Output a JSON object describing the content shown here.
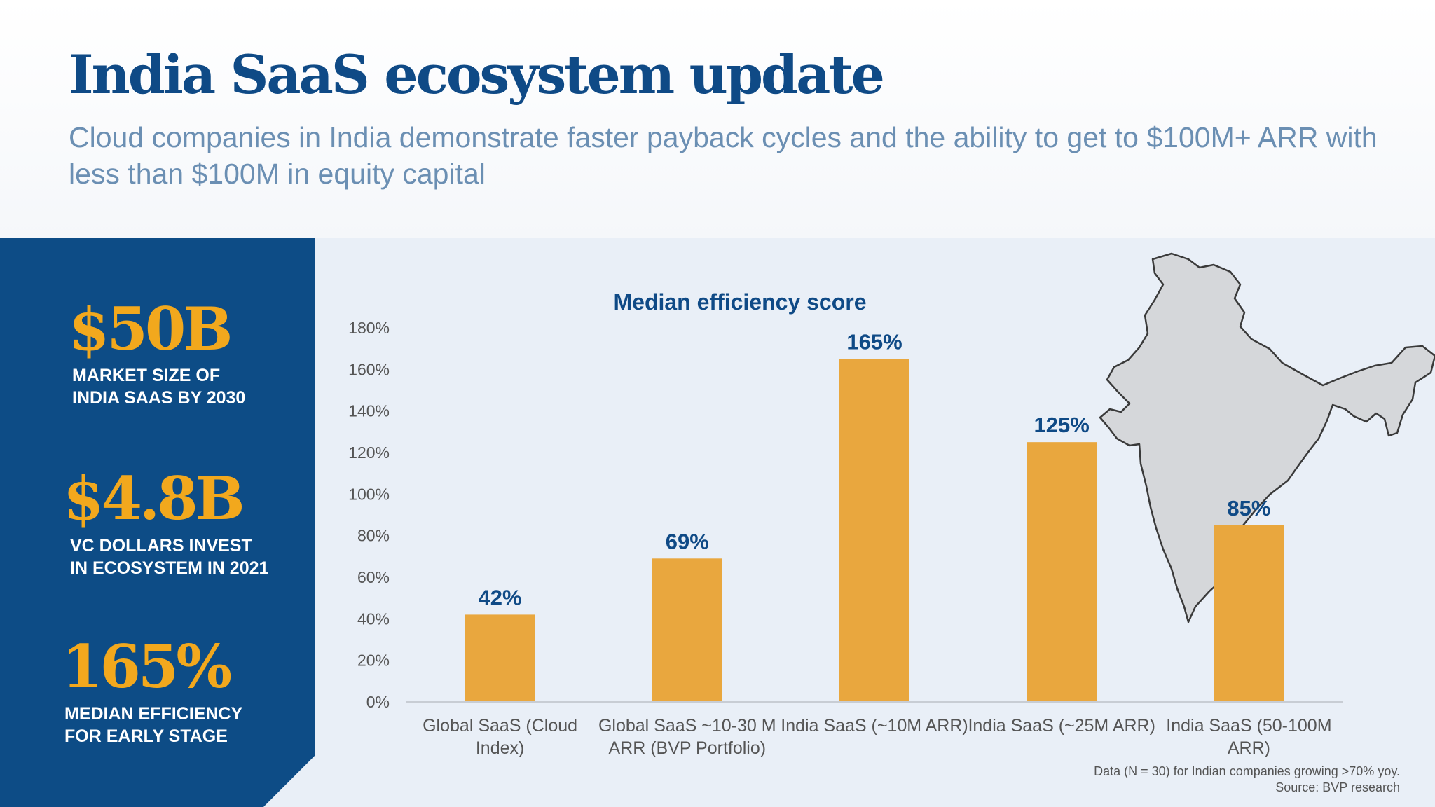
{
  "header": {
    "title": "India SaaS ecosystem update",
    "subtitle": "Cloud companies in India demonstrate faster payback cycles and the ability to get to $100M+ ARR with less than $100M in equity capital"
  },
  "stats": [
    {
      "value": "$50B",
      "label": "MARKET SIZE OF\nINDIA SAAS BY 2030"
    },
    {
      "value": "$4.8B",
      "label": "VC DOLLARS INVEST\nIN ECOSYSTEM IN 2021"
    },
    {
      "value": "165%",
      "label": "MEDIAN EFFICIENCY\nFOR EARLY STAGE"
    }
  ],
  "chart_data": {
    "type": "bar",
    "title": "Median efficiency score",
    "categories": [
      [
        "Global SaaS (Cloud",
        "Index)"
      ],
      [
        "Global SaaS ~10-30 M",
        "ARR (BVP Portfolio)"
      ],
      [
        "India SaaS (~10M ARR)"
      ],
      [
        "India SaaS (~25M ARR)"
      ],
      [
        "India SaaS (50-100M",
        "ARR)"
      ]
    ],
    "values": [
      42,
      69,
      165,
      125,
      85
    ],
    "data_labels": [
      "42%",
      "69%",
      "165%",
      "125%",
      "85%"
    ],
    "ylim": [
      0,
      180
    ],
    "y_ticks": [
      0,
      20,
      40,
      60,
      80,
      100,
      120,
      140,
      160,
      180
    ],
    "y_tick_labels": [
      "0%",
      "20%",
      "40%",
      "60%",
      "80%",
      "100%",
      "120%",
      "140%",
      "160%",
      "180%"
    ],
    "xlabel": "",
    "ylabel": "",
    "grid": false,
    "legend": "none"
  },
  "footnote": {
    "line1": "Data (N = 30) for Indian companies growing >70% yoy.",
    "line2": "Source: BVP research"
  },
  "colors": {
    "brand_blue": "#0d4c86",
    "bar_orange": "#e9a73e",
    "stat_gold": "#f2a81d",
    "map_gray": "#d5d7da"
  },
  "decorations": {
    "map_icon": "india-map-icon"
  }
}
